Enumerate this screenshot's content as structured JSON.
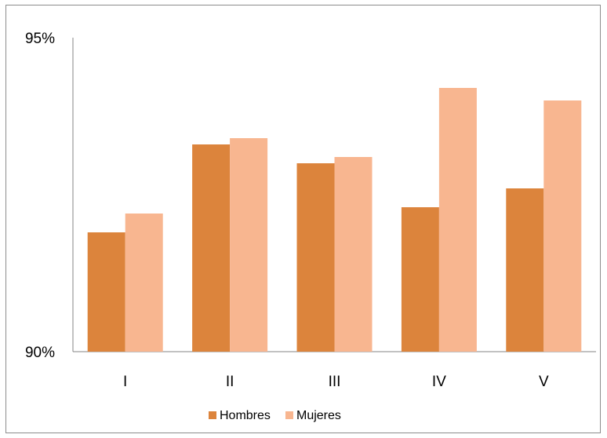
{
  "chart_data": {
    "type": "bar",
    "title": "",
    "xlabel": "",
    "ylabel": "",
    "categories": [
      "I",
      "II",
      "III",
      "IV",
      "V"
    ],
    "series": [
      {
        "name": "Hombres",
        "color": "#DC843C",
        "values": [
          91.9,
          93.3,
          93.0,
          92.3,
          92.6
        ]
      },
      {
        "name": "Mujeres",
        "color": "#F8B690",
        "values": [
          92.2,
          93.4,
          93.1,
          94.2,
          94.0
        ]
      }
    ],
    "ylim": [
      90,
      95
    ],
    "yticks": [
      "90%",
      "95%"
    ],
    "ytick_values": [
      90,
      95
    ],
    "grid": false,
    "legend": "bottom"
  }
}
